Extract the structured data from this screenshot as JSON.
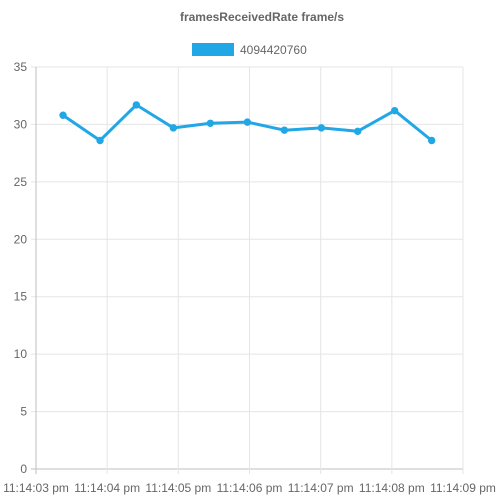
{
  "chart_data": {
    "type": "line",
    "title": "framesReceivedRate frame/s",
    "xlabel": "",
    "ylabel": "",
    "x_ticks": [
      "11:14:03 pm",
      "11:14:04 pm",
      "11:14:05 pm",
      "11:14:06 pm",
      "11:14:07 pm",
      "11:14:08 pm",
      "11:14:09 pm"
    ],
    "x_range": [
      0,
      6
    ],
    "ylim": [
      0,
      35
    ],
    "y_ticks": [
      0,
      5,
      10,
      15,
      20,
      25,
      30,
      35
    ],
    "grid": true,
    "legend_position": "top-center",
    "series": [
      {
        "name": "4094420760",
        "color": "#22a7e6",
        "x": [
          0.38,
          0.9,
          1.41,
          1.93,
          2.45,
          2.97,
          3.49,
          4.01,
          4.52,
          5.04,
          5.56
        ],
        "values": [
          30.8,
          28.6,
          31.7,
          29.7,
          30.1,
          30.2,
          29.5,
          29.7,
          29.4,
          31.2,
          28.6
        ]
      }
    ]
  }
}
